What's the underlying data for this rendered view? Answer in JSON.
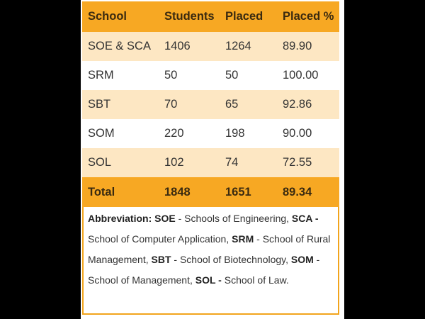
{
  "table": {
    "headers": [
      "School",
      "Students",
      "Placed",
      "Placed %"
    ],
    "rows": [
      [
        "SOE & SCA",
        "1406",
        "1264",
        "89.90"
      ],
      [
        "SRM",
        "50",
        "50",
        "100.00"
      ],
      [
        "SBT",
        "70",
        "65",
        "92.86"
      ],
      [
        "SOM",
        "220",
        "198",
        "90.00"
      ],
      [
        "SOL",
        "102",
        "74",
        "72.55"
      ]
    ],
    "total": [
      "Total",
      "1848",
      "1651",
      "89.34"
    ]
  },
  "note": {
    "label": "Abbreviation:",
    "parts": [
      {
        "abbr": "SOE",
        "sep": " - ",
        "text": "Schools of Engineering, "
      },
      {
        "abbr": "SCA -",
        "sep": " ",
        "text": "School of Computer Application, "
      },
      {
        "abbr": "SRM",
        "sep": " - ",
        "text": "School of Rural Management, "
      },
      {
        "abbr": "SBT",
        "sep": " - ",
        "text": "School of Biotechnology, "
      },
      {
        "abbr": "SOM",
        "sep": " - ",
        "text": "School of Management, "
      },
      {
        "abbr": "SOL -",
        "sep": " ",
        "text": "School of Law."
      }
    ]
  },
  "colors": {
    "header_bg": "#f7a823",
    "stripe_bg": "#fde7c3",
    "border": "#f2a41c",
    "background": "#000000"
  }
}
